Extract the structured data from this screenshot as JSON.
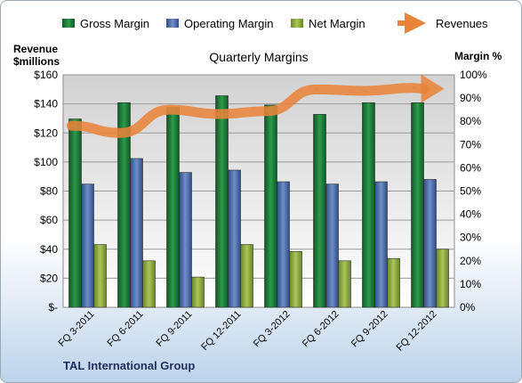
{
  "chart_data": {
    "type": "bar",
    "title": "Quarterly Margins",
    "company": "TAL International Group",
    "categories": [
      "FQ 3-2011",
      "FQ 6-2011",
      "FQ 9-2011",
      "FQ 12-2011",
      "FQ 3-2012",
      "FQ 6-2012",
      "FQ 9-2012",
      "FQ 12-2012"
    ],
    "y_left": {
      "label_line1": "Revenue",
      "label_line2": "$millions",
      "ylim": [
        0,
        160
      ],
      "ticks": [
        "$-",
        "$20",
        "$40",
        "$60",
        "$80",
        "$100",
        "$120",
        "$140",
        "$160"
      ]
    },
    "y_right": {
      "label": "Margin %",
      "ylim": [
        0,
        100
      ],
      "ticks": [
        "0%",
        "10%",
        "20%",
        "30%",
        "40%",
        "50%",
        "60%",
        "70%",
        "80%",
        "90%",
        "100%"
      ]
    },
    "series": [
      {
        "name": "Gross Margin",
        "axis": "right",
        "kind": "bar",
        "color": "#1e7d3a",
        "values": [
          81,
          88,
          86,
          91,
          87,
          83,
          88,
          88
        ]
      },
      {
        "name": "Operating Margin",
        "axis": "right",
        "kind": "bar",
        "color": "#4f6fa8",
        "values": [
          53,
          64,
          58,
          59,
          54,
          53,
          54,
          55
        ]
      },
      {
        "name": "Net Margin",
        "axis": "right",
        "kind": "bar",
        "color": "#8caa3c",
        "values": [
          27,
          20,
          13,
          27,
          24,
          20,
          21,
          25
        ]
      },
      {
        "name": "Revenues",
        "axis": "left",
        "kind": "line",
        "color": "#e8843a",
        "values": [
          125,
          120,
          136,
          133,
          135,
          150,
          149,
          151
        ]
      }
    ],
    "grid": true,
    "legend_position": "top"
  }
}
